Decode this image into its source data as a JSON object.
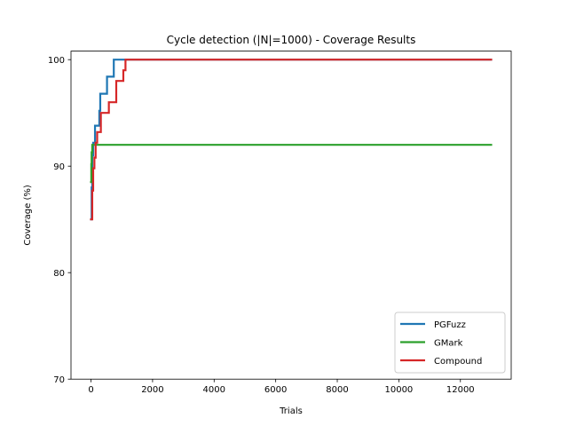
{
  "chart_data": {
    "type": "line",
    "title": "Cycle detection (|N|=1000) - Coverage Results",
    "xlabel": "Trials",
    "ylabel": "Coverage (%)",
    "xlim": [
      -650,
      13650
    ],
    "ylim": [
      70,
      100.8
    ],
    "xticks": [
      0,
      2000,
      4000,
      6000,
      8000,
      10000,
      12000
    ],
    "xtick_labels": [
      "0",
      "2000",
      "4000",
      "6000",
      "8000",
      "10000",
      "12000"
    ],
    "yticks": [
      70,
      80,
      90,
      100
    ],
    "ytick_labels": [
      "70",
      "80",
      "90",
      "100"
    ],
    "grid": false,
    "legend_position": "lower-right",
    "series": [
      {
        "name": "PGFuzz",
        "color": "#1f77b4",
        "x": [
          0,
          20,
          20,
          40,
          40,
          70,
          70,
          130,
          130,
          270,
          270,
          300,
          300,
          520,
          520,
          740,
          740,
          13000
        ],
        "y": [
          85.0,
          85.0,
          88.0,
          88.0,
          91.0,
          91.0,
          92.2,
          92.2,
          93.8,
          93.8,
          95.2,
          95.2,
          96.8,
          96.8,
          98.4,
          98.4,
          100.0,
          100.0
        ]
      },
      {
        "name": "GMark",
        "color": "#2ca02c",
        "x": [
          0,
          10,
          10,
          20,
          20,
          40,
          40,
          13000
        ],
        "y": [
          88.5,
          88.5,
          90.2,
          90.2,
          91.3,
          91.3,
          92.0,
          92.0
        ]
      },
      {
        "name": "Compound",
        "color": "#d62728",
        "x": [
          0,
          40,
          40,
          70,
          70,
          110,
          110,
          150,
          150,
          200,
          200,
          320,
          320,
          580,
          580,
          820,
          820,
          1050,
          1050,
          1120,
          1120,
          13000
        ],
        "y": [
          85.0,
          85.0,
          87.7,
          87.7,
          89.8,
          89.8,
          90.8,
          90.8,
          92.2,
          92.2,
          93.2,
          93.2,
          95.0,
          95.0,
          96.0,
          96.0,
          98.0,
          98.0,
          99.0,
          99.0,
          100.0,
          100.0
        ]
      }
    ]
  }
}
